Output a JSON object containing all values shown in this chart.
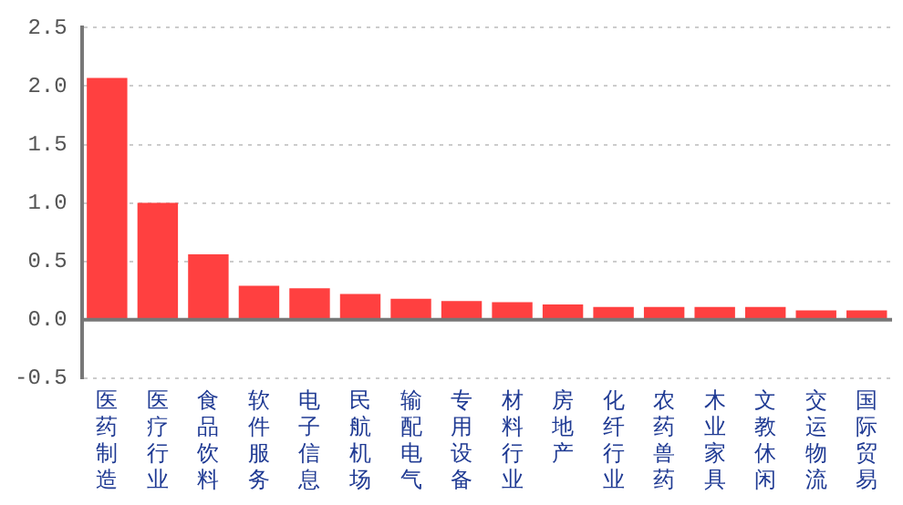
{
  "chart_data": {
    "type": "bar",
    "categories": [
      "医药制造",
      "医疗行业",
      "食品饮料",
      "软件服务",
      "电子信息",
      "民航机场",
      "输配电气",
      "专用设备",
      "材料行业",
      "房地产",
      "化纤行业",
      "农药兽药",
      "木业家具",
      "文教休闲",
      "交运物流",
      "国际贸易"
    ],
    "values": [
      2.07,
      1.0,
      0.56,
      0.29,
      0.27,
      0.22,
      0.18,
      0.16,
      0.15,
      0.13,
      0.11,
      0.11,
      0.11,
      0.11,
      0.08,
      0.08
    ],
    "color": "#ff4040",
    "ylim": [
      -0.5,
      2.5
    ],
    "yticks": [
      {
        "value": -0.5,
        "label": "-0.5"
      },
      {
        "value": 0,
        "label": "0.0"
      },
      {
        "value": 0.5,
        "label": "0.5"
      },
      {
        "value": 1,
        "label": "1.0"
      },
      {
        "value": 1.5,
        "label": "1.5"
      },
      {
        "value": 2,
        "label": "2.0"
      },
      {
        "value": 2.5,
        "label": "2.5"
      }
    ],
    "grid": "y",
    "legend": false
  }
}
